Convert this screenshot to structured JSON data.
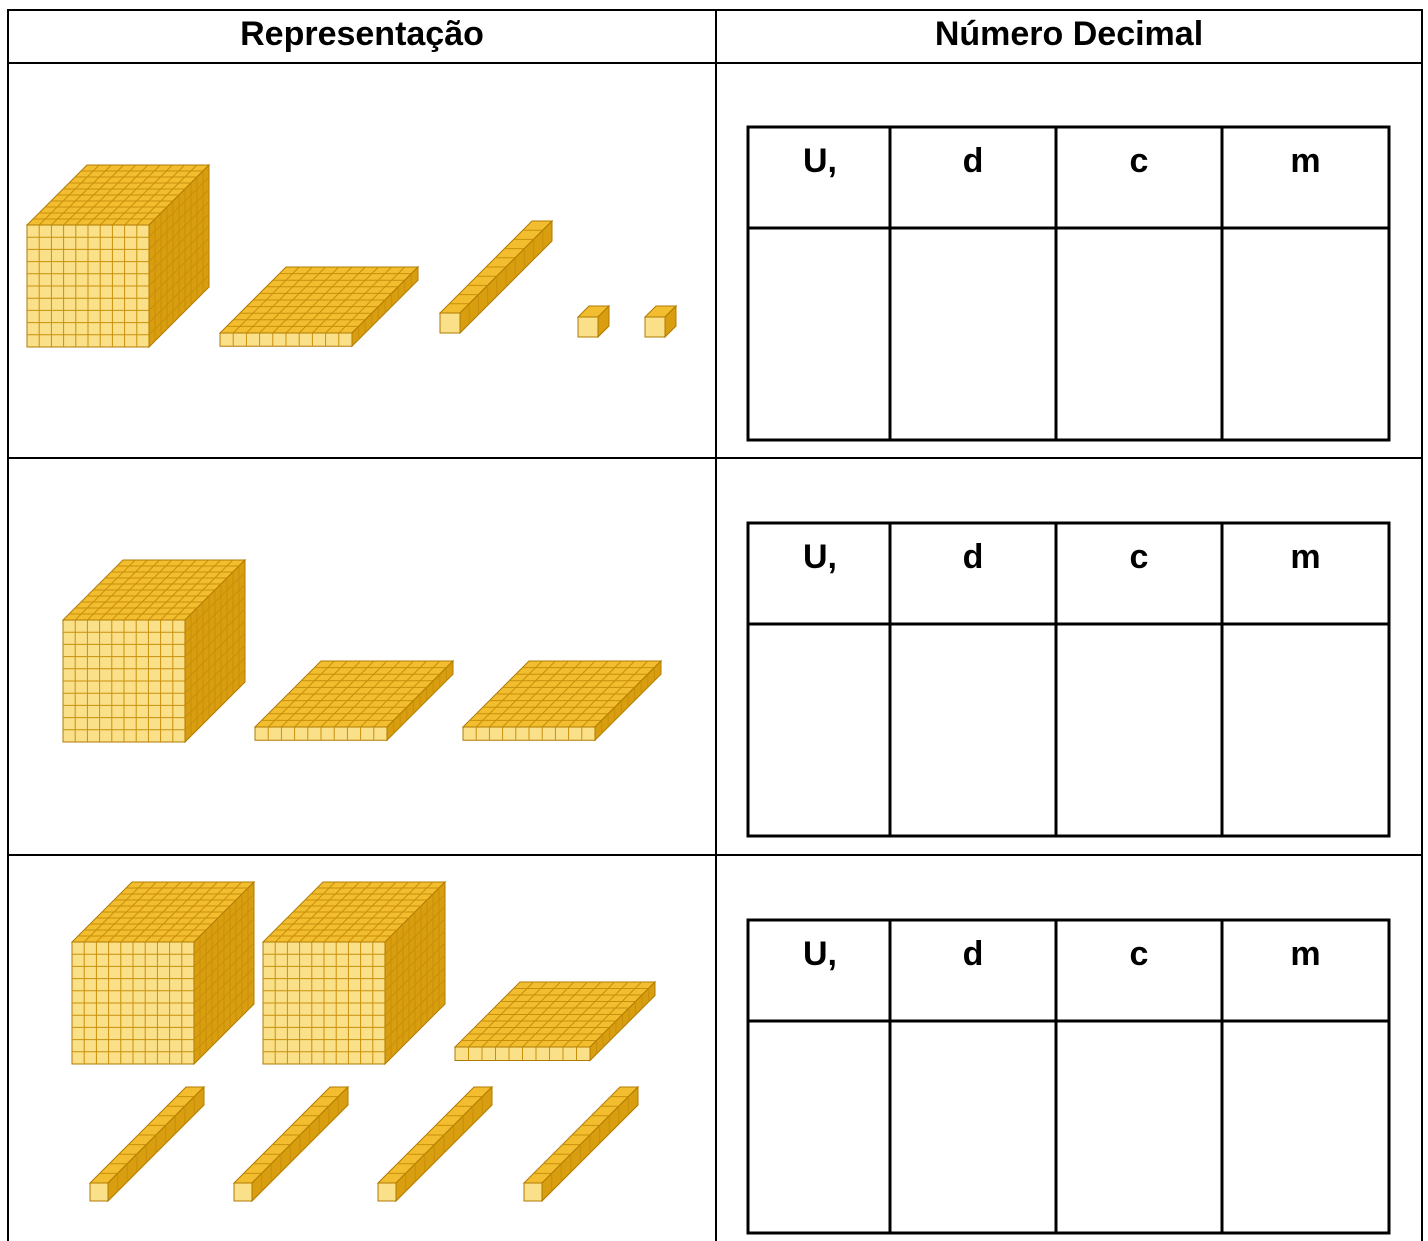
{
  "header": {
    "representation": "Representação",
    "decimal_number": "Número Decimal"
  },
  "rows": [
    {
      "place_values": [
        "U,",
        "d",
        "c",
        "m"
      ]
    },
    {
      "place_values": [
        "U,",
        "d",
        "c",
        "m"
      ]
    },
    {
      "place_values": [
        "U,",
        "d",
        "c",
        "m"
      ]
    }
  ]
}
